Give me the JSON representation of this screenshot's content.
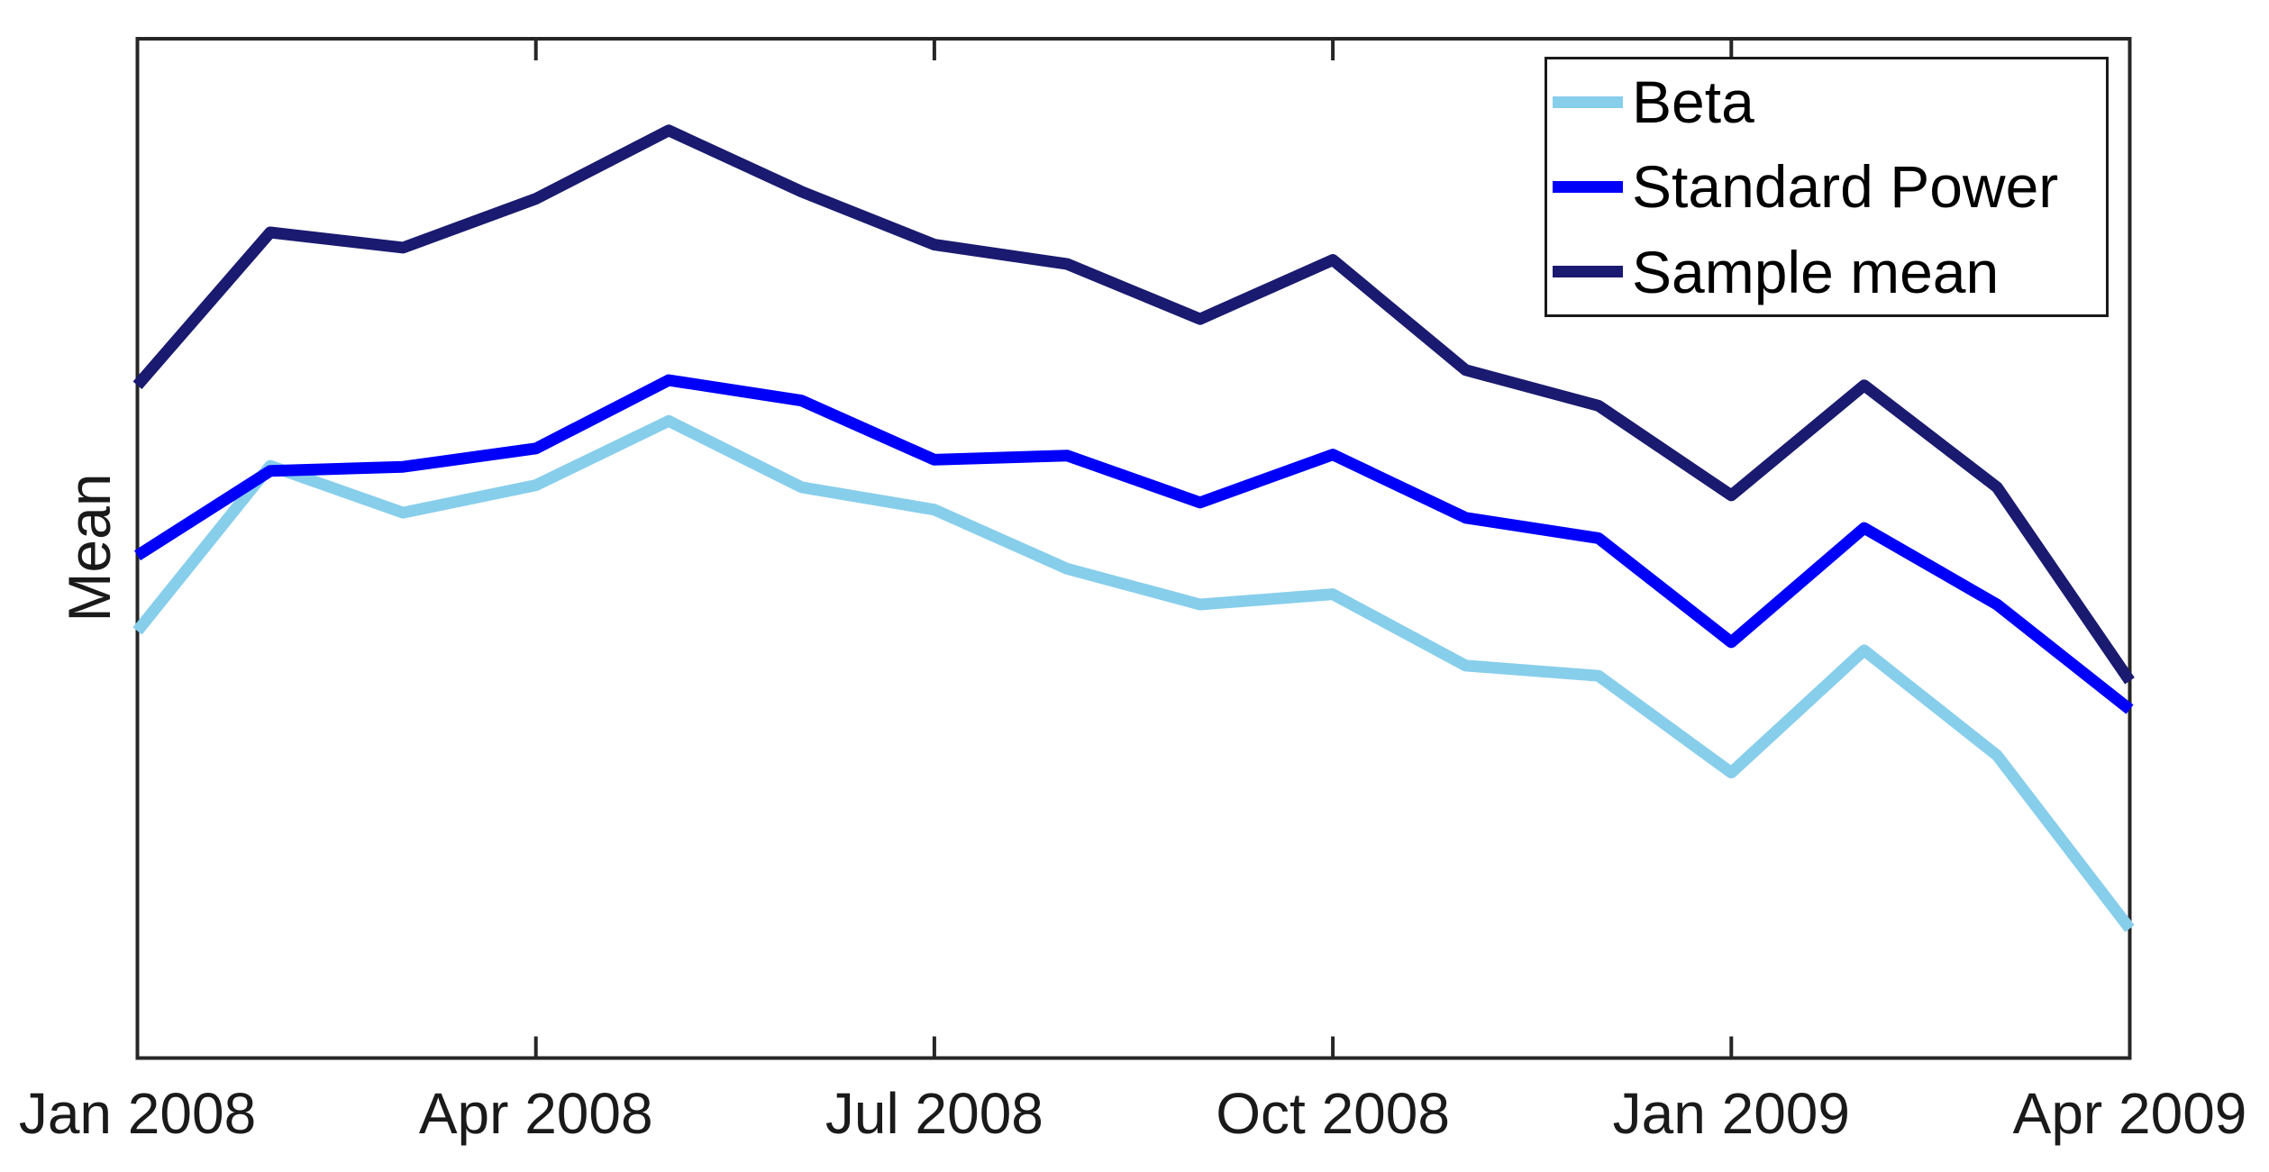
{
  "figure": {
    "background": "#FFFFFF",
    "axis_color": "#262626",
    "text_color": "#1A1A1A"
  },
  "chart_data": {
    "type": "line",
    "title": "",
    "xlabel": "",
    "ylabel": "Mean",
    "grid": false,
    "x": [
      "Jan 2008",
      "Feb 2008",
      "Mar 2008",
      "Apr 2008",
      "May 2008",
      "Jun 2008",
      "Jul 2008",
      "Aug 2008",
      "Sep 2008",
      "Oct 2008",
      "Nov 2008",
      "Dec 2008",
      "Jan 2009",
      "Feb 2009",
      "Mar 2009",
      "Apr 2009"
    ],
    "x_tick_positions": [
      0,
      3,
      6,
      9,
      12,
      15
    ],
    "x_tick_labels": [
      "Jan 2008",
      "Apr 2008",
      "Jul 2008",
      "Oct 2008",
      "Jan 2009",
      "Apr 2009"
    ],
    "y_axis": {
      "label": "Mean",
      "numeric_tick_labels_visible": false,
      "scale_note": "no numeric ticks shown; values are relative height 0-1 inside plot box",
      "ylim": [
        0,
        1
      ]
    },
    "legend": {
      "position": "top-right-inside",
      "border": true,
      "entries": [
        "Beta",
        "Standard Power",
        "Sample mean"
      ]
    },
    "series": [
      {
        "name": "Beta",
        "color": "#87CEEB",
        "values": [
          0.419,
          0.581,
          0.535,
          0.562,
          0.625,
          0.56,
          0.538,
          0.48,
          0.445,
          0.455,
          0.385,
          0.375,
          0.28,
          0.4,
          0.297,
          0.127
        ]
      },
      {
        "name": "Standard Power",
        "color": "#0000FA",
        "values": [
          0.493,
          0.576,
          0.58,
          0.598,
          0.665,
          0.645,
          0.587,
          0.591,
          0.545,
          0.592,
          0.53,
          0.51,
          0.408,
          0.52,
          0.445,
          0.342
        ]
      },
      {
        "name": "Sample mean",
        "color": "#1A1A70",
        "values": [
          0.66,
          0.81,
          0.795,
          0.843,
          0.91,
          0.85,
          0.798,
          0.779,
          0.725,
          0.783,
          0.675,
          0.64,
          0.552,
          0.66,
          0.56,
          0.37
        ]
      }
    ]
  }
}
